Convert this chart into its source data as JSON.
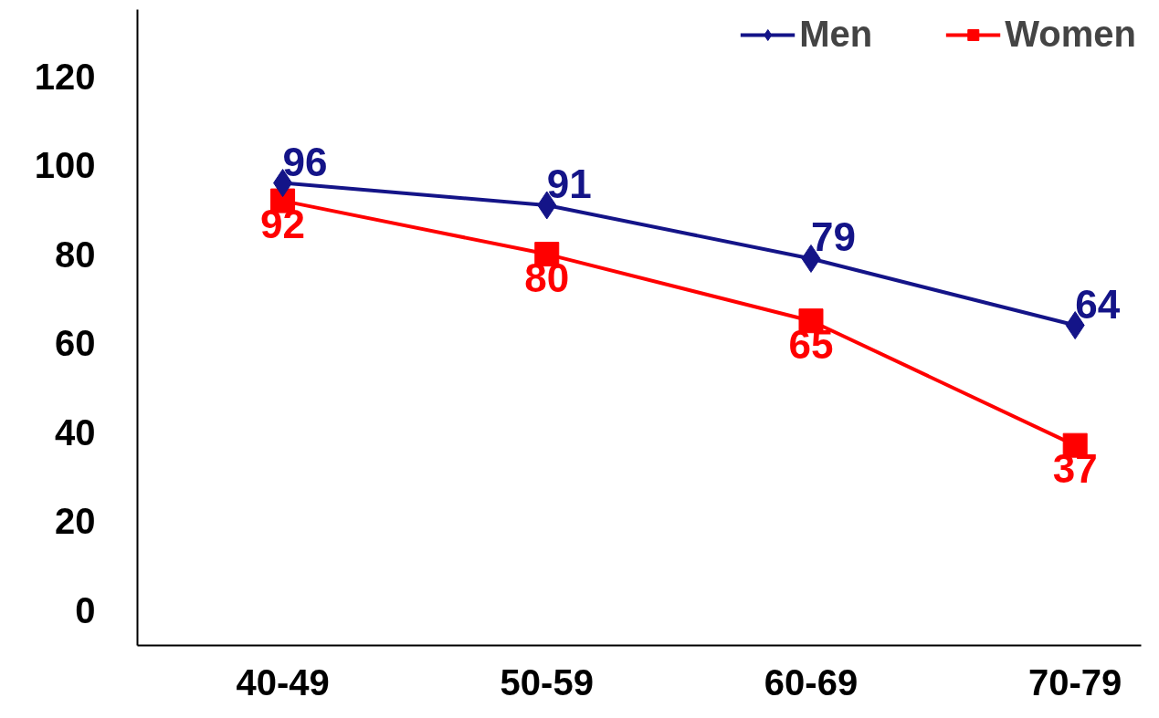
{
  "chart_data": {
    "type": "line",
    "categories": [
      "40-49",
      "50-59",
      "60-69",
      "70-79"
    ],
    "series": [
      {
        "name": "Men",
        "color": "#141488",
        "values": [
          96,
          91,
          79,
          64
        ],
        "marker": "diamond"
      },
      {
        "name": "Women",
        "color": "#ff0000",
        "values": [
          92,
          80,
          65,
          37
        ],
        "marker": "square"
      }
    ],
    "ylim": [
      -8,
      135
    ],
    "yticks": [
      0,
      20,
      40,
      60,
      80,
      100,
      120
    ],
    "grid": false,
    "legend": "top right",
    "data_labels": true,
    "line_style": "solid"
  }
}
